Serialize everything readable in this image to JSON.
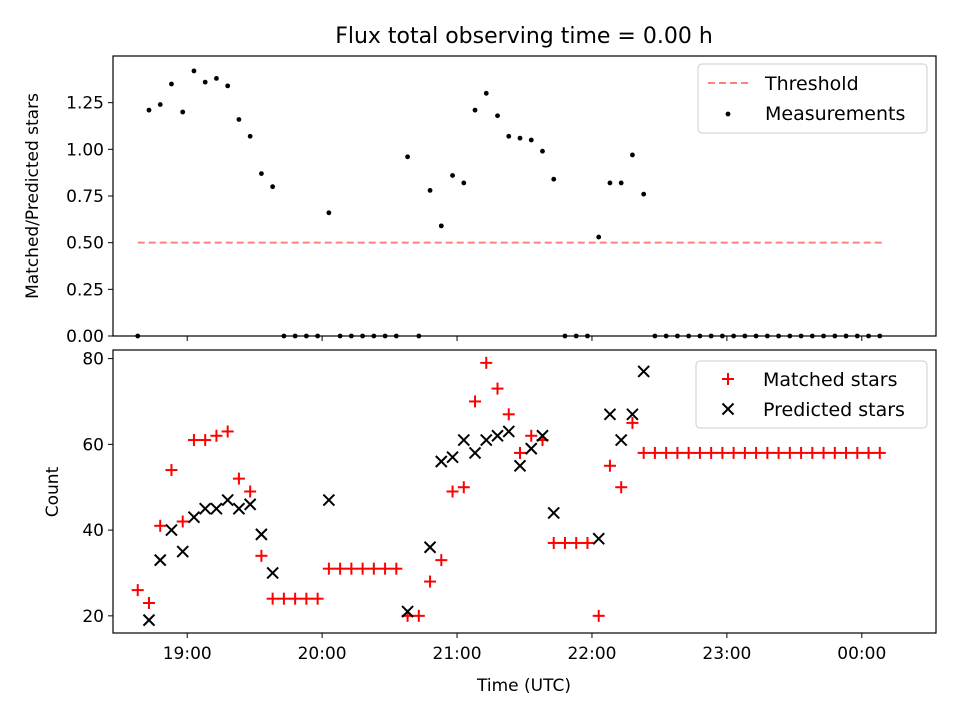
{
  "chart_data": [
    {
      "type": "scatter",
      "title": "Flux total observing time = 0.00 h",
      "xlabel": "",
      "ylabel": "Matched/Predicted stars",
      "xlim": [
        "18:27",
        "00:33"
      ],
      "ylim": [
        0,
        1.5
      ],
      "yticks": [
        "0.00",
        "0.25",
        "0.50",
        "0.75",
        "1.00",
        "1.25"
      ],
      "ytick_values": [
        0,
        0.25,
        0.5,
        0.75,
        1.0,
        1.25
      ],
      "grid": false,
      "legend_position": "top-right",
      "threshold": {
        "name": "Threshold",
        "value": 0.5,
        "x_range": [
          "18:38",
          "00:09"
        ],
        "color": "#ff7f7f"
      },
      "series": [
        {
          "name": "Measurements",
          "color": "#000000",
          "points": [
            [
              "18:38",
              0.0
            ],
            [
              "18:43",
              1.21
            ],
            [
              "18:48",
              1.24
            ],
            [
              "18:53",
              1.35
            ],
            [
              "18:58",
              1.2
            ],
            [
              "19:03",
              1.42
            ],
            [
              "19:08",
              1.36
            ],
            [
              "19:13",
              1.38
            ],
            [
              "19:18",
              1.34
            ],
            [
              "19:23",
              1.16
            ],
            [
              "19:28",
              1.07
            ],
            [
              "19:33",
              0.87
            ],
            [
              "19:38",
              0.8
            ],
            [
              "19:43",
              0.0
            ],
            [
              "19:48",
              0.0
            ],
            [
              "19:53",
              0.0
            ],
            [
              "19:58",
              0.0
            ],
            [
              "20:03",
              0.66
            ],
            [
              "20:08",
              0.0
            ],
            [
              "20:13",
              0.0
            ],
            [
              "20:18",
              0.0
            ],
            [
              "20:23",
              0.0
            ],
            [
              "20:28",
              0.0
            ],
            [
              "20:33",
              0.0
            ],
            [
              "20:38",
              0.96
            ],
            [
              "20:43",
              0.0
            ],
            [
              "20:48",
              0.78
            ],
            [
              "20:53",
              0.59
            ],
            [
              "20:58",
              0.86
            ],
            [
              "21:03",
              0.82
            ],
            [
              "21:08",
              1.21
            ],
            [
              "21:13",
              1.3
            ],
            [
              "21:18",
              1.18
            ],
            [
              "21:23",
              1.07
            ],
            [
              "21:28",
              1.06
            ],
            [
              "21:33",
              1.05
            ],
            [
              "21:38",
              0.99
            ],
            [
              "21:43",
              0.84
            ],
            [
              "21:48",
              0.0
            ],
            [
              "21:53",
              0.0
            ],
            [
              "21:58",
              0.0
            ],
            [
              "22:03",
              0.53
            ],
            [
              "22:08",
              0.82
            ],
            [
              "22:13",
              0.82
            ],
            [
              "22:18",
              0.97
            ],
            [
              "22:23",
              0.76
            ],
            [
              "22:28",
              0.0
            ],
            [
              "22:33",
              0.0
            ],
            [
              "22:38",
              0.0
            ],
            [
              "22:43",
              0.0
            ],
            [
              "22:48",
              0.0
            ],
            [
              "22:53",
              0.0
            ],
            [
              "22:58",
              0.0
            ],
            [
              "23:03",
              0.0
            ],
            [
              "23:08",
              0.0
            ],
            [
              "23:13",
              0.0
            ],
            [
              "23:18",
              0.0
            ],
            [
              "23:23",
              0.0
            ],
            [
              "23:28",
              0.0
            ],
            [
              "23:33",
              0.0
            ],
            [
              "23:38",
              0.0
            ],
            [
              "23:43",
              0.0
            ],
            [
              "23:48",
              0.0
            ],
            [
              "23:53",
              0.0
            ],
            [
              "23:58",
              0.0
            ],
            [
              "00:03",
              0.0
            ],
            [
              "00:08",
              0.0
            ]
          ]
        }
      ]
    },
    {
      "type": "scatter",
      "title": "",
      "xlabel": "Time (UTC)",
      "ylabel": "Count",
      "xlim": [
        "18:27",
        "00:33"
      ],
      "ylim": [
        16,
        82
      ],
      "yticks": [
        "20",
        "40",
        "60",
        "80"
      ],
      "ytick_values": [
        20,
        40,
        60,
        80
      ],
      "xticks": [
        "19:00",
        "20:00",
        "21:00",
        "22:00",
        "23:00",
        "00:00"
      ],
      "grid": false,
      "legend_position": "top-right",
      "series": [
        {
          "name": "Matched stars",
          "marker": "plus",
          "color": "#ff0000",
          "points": [
            [
              "18:38",
              26
            ],
            [
              "18:43",
              23
            ],
            [
              "18:48",
              41
            ],
            [
              "18:53",
              54
            ],
            [
              "18:58",
              42
            ],
            [
              "19:03",
              61
            ],
            [
              "19:08",
              61
            ],
            [
              "19:13",
              62
            ],
            [
              "19:18",
              63
            ],
            [
              "19:23",
              52
            ],
            [
              "19:28",
              49
            ],
            [
              "19:33",
              34
            ],
            [
              "19:38",
              24
            ],
            [
              "19:43",
              24
            ],
            [
              "19:48",
              24
            ],
            [
              "19:53",
              24
            ],
            [
              "19:58",
              24
            ],
            [
              "20:03",
              31
            ],
            [
              "20:08",
              31
            ],
            [
              "20:13",
              31
            ],
            [
              "20:18",
              31
            ],
            [
              "20:23",
              31
            ],
            [
              "20:28",
              31
            ],
            [
              "20:33",
              31
            ],
            [
              "20:38",
              20
            ],
            [
              "20:43",
              20
            ],
            [
              "20:48",
              28
            ],
            [
              "20:53",
              33
            ],
            [
              "20:58",
              49
            ],
            [
              "21:03",
              50
            ],
            [
              "21:08",
              70
            ],
            [
              "21:13",
              79
            ],
            [
              "21:18",
              73
            ],
            [
              "21:23",
              67
            ],
            [
              "21:28",
              58
            ],
            [
              "21:33",
              62
            ],
            [
              "21:38",
              61
            ],
            [
              "21:43",
              37
            ],
            [
              "21:48",
              37
            ],
            [
              "21:53",
              37
            ],
            [
              "21:58",
              37
            ],
            [
              "22:03",
              20
            ],
            [
              "22:08",
              55
            ],
            [
              "22:13",
              50
            ],
            [
              "22:18",
              65
            ],
            [
              "22:23",
              58
            ],
            [
              "22:28",
              58
            ],
            [
              "22:33",
              58
            ],
            [
              "22:38",
              58
            ],
            [
              "22:43",
              58
            ],
            [
              "22:48",
              58
            ],
            [
              "22:53",
              58
            ],
            [
              "22:58",
              58
            ],
            [
              "23:03",
              58
            ],
            [
              "23:08",
              58
            ],
            [
              "23:13",
              58
            ],
            [
              "23:18",
              58
            ],
            [
              "23:23",
              58
            ],
            [
              "23:28",
              58
            ],
            [
              "23:33",
              58
            ],
            [
              "23:38",
              58
            ],
            [
              "23:43",
              58
            ],
            [
              "23:48",
              58
            ],
            [
              "23:53",
              58
            ],
            [
              "23:58",
              58
            ],
            [
              "00:03",
              58
            ],
            [
              "00:08",
              58
            ]
          ]
        },
        {
          "name": "Predicted stars",
          "marker": "x",
          "color": "#000000",
          "points": [
            [
              "18:43",
              19
            ],
            [
              "18:48",
              33
            ],
            [
              "18:53",
              40
            ],
            [
              "18:58",
              35
            ],
            [
              "19:03",
              43
            ],
            [
              "19:08",
              45
            ],
            [
              "19:13",
              45
            ],
            [
              "19:18",
              47
            ],
            [
              "19:23",
              45
            ],
            [
              "19:28",
              46
            ],
            [
              "19:33",
              39
            ],
            [
              "19:38",
              30
            ],
            [
              "20:03",
              47
            ],
            [
              "20:38",
              21
            ],
            [
              "20:48",
              36
            ],
            [
              "20:53",
              56
            ],
            [
              "20:58",
              57
            ],
            [
              "21:03",
              61
            ],
            [
              "21:08",
              58
            ],
            [
              "21:13",
              61
            ],
            [
              "21:18",
              62
            ],
            [
              "21:23",
              63
            ],
            [
              "21:28",
              55
            ],
            [
              "21:33",
              59
            ],
            [
              "21:38",
              62
            ],
            [
              "21:43",
              44
            ],
            [
              "22:03",
              38
            ],
            [
              "22:08",
              67
            ],
            [
              "22:13",
              61
            ],
            [
              "22:18",
              67
            ],
            [
              "22:23",
              77
            ]
          ]
        }
      ]
    }
  ]
}
